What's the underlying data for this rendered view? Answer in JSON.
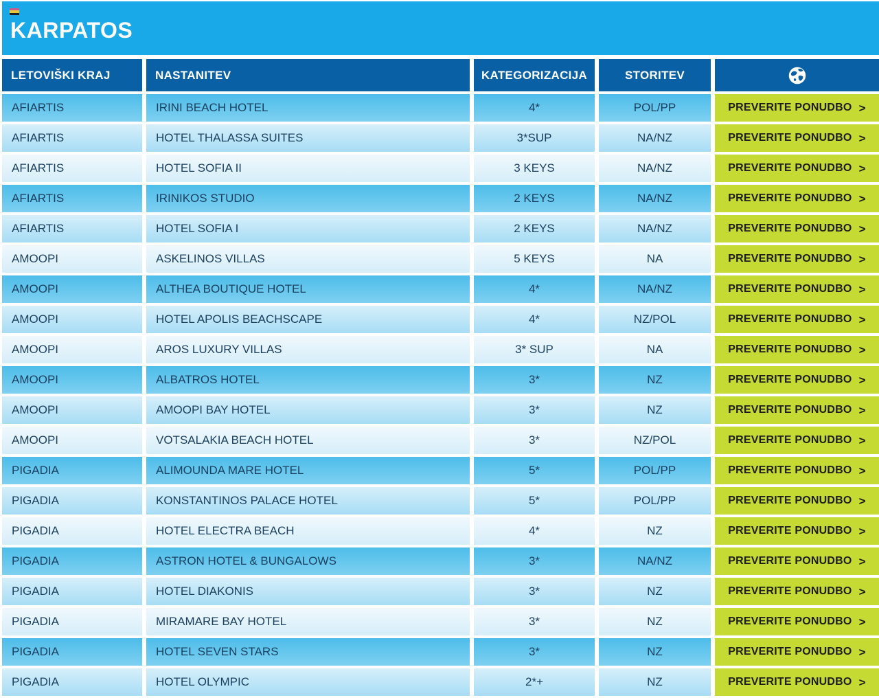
{
  "page": {
    "title": "KARPATOS"
  },
  "flag_icon": {
    "stripe_colors": [
      "#C85A8E",
      "#E3C93B",
      "#20202A"
    ]
  },
  "table": {
    "headers": {
      "kraj": "LETOVIŠKI KRAJ",
      "nastanitev": "NASTANITEV",
      "kategorizacija": "KATEGORIZACIJA",
      "storitev": "STORITEV",
      "offers_icon": "globe-icon"
    },
    "offer_button": {
      "label": "PREVERITE PONUDBO",
      "chevron": ">"
    },
    "rows": [
      {
        "kraj": "AFIARTIS",
        "nastanitev": "IRINI BEACH HOTEL",
        "kategorizacija": "4*",
        "storitev": "POL/PP"
      },
      {
        "kraj": "AFIARTIS",
        "nastanitev": "HOTEL THALASSA SUITES",
        "kategorizacija": "3*SUP",
        "storitev": "NA/NZ"
      },
      {
        "kraj": "AFIARTIS",
        "nastanitev": "HOTEL SOFIA II",
        "kategorizacija": "3 KEYS",
        "storitev": "NA/NZ"
      },
      {
        "kraj": "AFIARTIS",
        "nastanitev": "IRINIKOS STUDIO",
        "kategorizacija": "2 KEYS",
        "storitev": "NA/NZ"
      },
      {
        "kraj": "AFIARTIS",
        "nastanitev": "HOTEL SOFIA I",
        "kategorizacija": "2 KEYS",
        "storitev": "NA/NZ"
      },
      {
        "kraj": "AMOOPI",
        "nastanitev": "ASKELINOS VILLAS",
        "kategorizacija": "5 KEYS",
        "storitev": "NA"
      },
      {
        "kraj": "AMOOPI",
        "nastanitev": "ALTHEA BOUTIQUE HOTEL",
        "kategorizacija": "4*",
        "storitev": "NA/NZ"
      },
      {
        "kraj": "AMOOPI",
        "nastanitev": "HOTEL APOLIS BEACHSCAPE",
        "kategorizacija": "4*",
        "storitev": "NZ/POL"
      },
      {
        "kraj": "AMOOPI",
        "nastanitev": "AROS LUXURY VILLAS",
        "kategorizacija": "3* SUP",
        "storitev": "NA"
      },
      {
        "kraj": "AMOOPI",
        "nastanitev": "ALBATROS HOTEL",
        "kategorizacija": "3*",
        "storitev": "NZ"
      },
      {
        "kraj": "AMOOPI",
        "nastanitev": "AMOOPI BAY HOTEL",
        "kategorizacija": "3*",
        "storitev": "NZ"
      },
      {
        "kraj": "AMOOPI",
        "nastanitev": "VOTSALAKIA BEACH HOTEL",
        "kategorizacija": "3*",
        "storitev": "NZ/POL"
      },
      {
        "kraj": "PIGADIA",
        "nastanitev": "ALIMOUNDA MARE HOTEL",
        "kategorizacija": "5*",
        "storitev": "POL/PP"
      },
      {
        "kraj": "PIGADIA",
        "nastanitev": "KONSTANTINOS PALACE HOTEL",
        "kategorizacija": "5*",
        "storitev": "POL/PP"
      },
      {
        "kraj": "PIGADIA",
        "nastanitev": "HOTEL ELECTRA BEACH",
        "kategorizacija": "4*",
        "storitev": "NZ"
      },
      {
        "kraj": "PIGADIA",
        "nastanitev": "ASTRON HOTEL & BUNGALOWS",
        "kategorizacija": "3*",
        "storitev": "NA/NZ"
      },
      {
        "kraj": "PIGADIA",
        "nastanitev": "HOTEL DIAKONIS",
        "kategorizacija": "3*",
        "storitev": "NZ"
      },
      {
        "kraj": "PIGADIA",
        "nastanitev": "MIRAMARE BAY HOTEL",
        "kategorizacija": "3*",
        "storitev": "NZ"
      },
      {
        "kraj": "PIGADIA",
        "nastanitev": "HOTEL SEVEN STARS",
        "kategorizacija": "3*",
        "storitev": "NZ"
      },
      {
        "kraj": "PIGADIA",
        "nastanitev": "HOTEL OLYMPIC",
        "kategorizacija": "2*+",
        "storitev": "NZ"
      }
    ]
  },
  "colors": {
    "banner_blue": "#19A8E8",
    "header_blue": "#0A60A5",
    "row_medium_blue": "#5FC6EC",
    "row_light_blue": "#B9E3F6",
    "row_lightest_blue": "#E2F3FB",
    "button_green": "#C6DA34",
    "text_navy": "#1B3F5F",
    "button_text": "#1D1D1B"
  }
}
